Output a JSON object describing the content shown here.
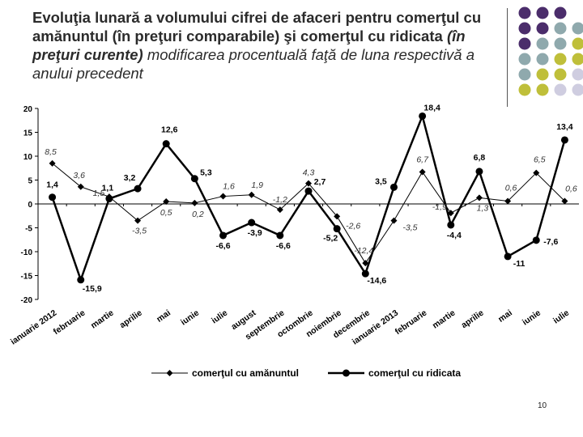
{
  "title": {
    "part1": "Evoluţia lunară a volumului cifrei de afaceri pentru comerţul cu amănuntul (în preţuri comparabile) şi comerţul cu ridicata ",
    "part2": "(în preţuri curente)",
    "part3": " modificarea procentuală faţă de luna respectivă a anului precedent"
  },
  "page_number": "10",
  "decor_colors": {
    "purple": "#4b2d6b",
    "teal": "#8fa9ad",
    "olive": "#bfbf3a",
    "lavender": "#cfcde0"
  },
  "chart_data": {
    "type": "line",
    "categories": [
      "ianuarie 2012",
      "februarie",
      "martie",
      "aprilie",
      "mai",
      "iunie",
      "iulie",
      "august",
      "septembrie",
      "octombrie",
      "noiembrie",
      "decembrie",
      "ianuarie 2013",
      "februarie",
      "martie",
      "aprilie",
      "mai",
      "iunie",
      "iulie"
    ],
    "ylim": [
      -20,
      20
    ],
    "yticks": [
      "20",
      "15",
      "10",
      "5",
      "0",
      "-5",
      "-10",
      "-15",
      "-20"
    ],
    "grid": false,
    "legend_position": "bottom",
    "series": [
      {
        "name": "comerţul cu amănuntul",
        "marker": "diamond",
        "values": [
          8.5,
          3.6,
          1.5,
          -3.5,
          0.5,
          0.2,
          1.6,
          1.9,
          -1.2,
          4.3,
          -2.6,
          -12.4,
          -3.5,
          6.7,
          -1.9,
          1.3,
          0.6,
          6.5,
          0.6
        ],
        "labels": [
          "8,5",
          "3,6",
          "1,5",
          "-3,5",
          "0,5",
          "0,2",
          "1,6",
          "1,9",
          "-1,2",
          "4,3",
          "-2,6",
          "-12,4",
          "-3,5",
          "6,7",
          "-1,9",
          "1,3",
          "0,6",
          "6,5",
          "0,6"
        ]
      },
      {
        "name": "comerţul cu ridicata",
        "marker": "circle",
        "values": [
          1.4,
          -15.9,
          1.1,
          3.2,
          12.6,
          5.3,
          -6.6,
          -3.9,
          -6.6,
          2.7,
          -5.2,
          -14.6,
          3.5,
          18.4,
          -4.4,
          6.8,
          -11,
          -7.6,
          13.4
        ],
        "labels": [
          "1,4",
          "-15,9",
          "1,1",
          "3,2",
          "12,6",
          "5,3",
          "-6,6",
          "-3,9",
          "-6,6",
          "2,7",
          "-5,2",
          "-14,6",
          "3,5",
          "18,4",
          "-4,4",
          "6,8",
          "-11",
          "-7,6",
          "13,4"
        ]
      }
    ]
  }
}
